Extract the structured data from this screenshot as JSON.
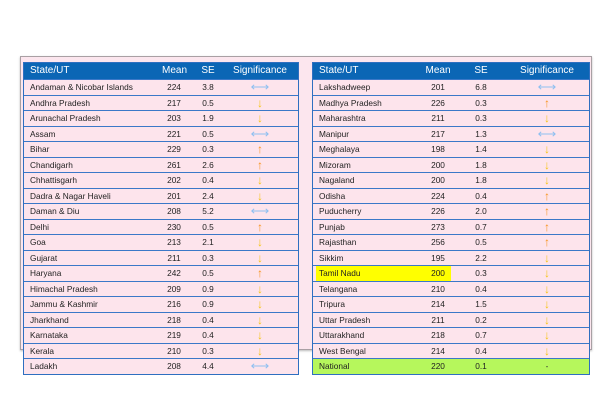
{
  "headers": {
    "state": "State/UT",
    "mean": "Mean",
    "se": "SE",
    "significance": "Significance"
  },
  "colors": {
    "header": "#0b66b5",
    "row": "#fde4ec",
    "border": "#3b78c8",
    "up": "#f7931e",
    "down": "#f5c518",
    "ns": "#8ebff0",
    "national": "#b6f75c",
    "highlight": "#ffff00"
  },
  "left": [
    {
      "state": "Andaman & Nicobar Islands",
      "mean": "224",
      "se": "3.8",
      "sig": "ns"
    },
    {
      "state": "Andhra Pradesh",
      "mean": "217",
      "se": "0.5",
      "sig": "down"
    },
    {
      "state": "Arunachal Pradesh",
      "mean": "203",
      "se": "1.9",
      "sig": "down"
    },
    {
      "state": "Assam",
      "mean": "221",
      "se": "0.5",
      "sig": "ns"
    },
    {
      "state": "Bihar",
      "mean": "229",
      "se": "0.3",
      "sig": "up"
    },
    {
      "state": "Chandigarh",
      "mean": "261",
      "se": "2.6",
      "sig": "up"
    },
    {
      "state": "Chhattisgarh",
      "mean": "202",
      "se": "0.4",
      "sig": "down"
    },
    {
      "state": "Dadra & Nagar Haveli",
      "mean": "201",
      "se": "2.4",
      "sig": "down"
    },
    {
      "state": "Daman & Diu",
      "mean": "208",
      "se": "5.2",
      "sig": "ns"
    },
    {
      "state": "Delhi",
      "mean": "230",
      "se": "0.5",
      "sig": "up"
    },
    {
      "state": "Goa",
      "mean": "213",
      "se": "2.1",
      "sig": "down"
    },
    {
      "state": "Gujarat",
      "mean": "211",
      "se": "0.3",
      "sig": "down"
    },
    {
      "state": "Haryana",
      "mean": "242",
      "se": "0.5",
      "sig": "up"
    },
    {
      "state": "Himachal Pradesh",
      "mean": "209",
      "se": "0.9",
      "sig": "down"
    },
    {
      "state": "Jammu & Kashmir",
      "mean": "216",
      "se": "0.9",
      "sig": "down"
    },
    {
      "state": "Jharkhand",
      "mean": "218",
      "se": "0.4",
      "sig": "down"
    },
    {
      "state": "Karnataka",
      "mean": "219",
      "se": "0.4",
      "sig": "down"
    },
    {
      "state": "Kerala",
      "mean": "210",
      "se": "0.3",
      "sig": "down"
    },
    {
      "state": "Ladakh",
      "mean": "208",
      "se": "4.4",
      "sig": "ns"
    }
  ],
  "right": [
    {
      "state": "Lakshadweep",
      "mean": "201",
      "se": "6.8",
      "sig": "ns"
    },
    {
      "state": "Madhya Pradesh",
      "mean": "226",
      "se": "0.3",
      "sig": "up"
    },
    {
      "state": "Maharashtra",
      "mean": "211",
      "se": "0.3",
      "sig": "down"
    },
    {
      "state": "Manipur",
      "mean": "217",
      "se": "1.3",
      "sig": "ns"
    },
    {
      "state": "Meghalaya",
      "mean": "198",
      "se": "1.4",
      "sig": "down"
    },
    {
      "state": "Mizoram",
      "mean": "200",
      "se": "1.8",
      "sig": "down"
    },
    {
      "state": "Nagaland",
      "mean": "200",
      "se": "1.8",
      "sig": "down"
    },
    {
      "state": "Odisha",
      "mean": "224",
      "se": "0.4",
      "sig": "up"
    },
    {
      "state": "Puducherry",
      "mean": "226",
      "se": "2.0",
      "sig": "up"
    },
    {
      "state": "Punjab",
      "mean": "273",
      "se": "0.7",
      "sig": "up"
    },
    {
      "state": "Rajasthan",
      "mean": "256",
      "se": "0.5",
      "sig": "up"
    },
    {
      "state": "Sikkim",
      "mean": "195",
      "se": "2.2",
      "sig": "down"
    },
    {
      "state": "Tamil Nadu",
      "mean": "200",
      "se": "0.3",
      "sig": "down",
      "highlight": true
    },
    {
      "state": "Telangana",
      "mean": "210",
      "se": "0.4",
      "sig": "down"
    },
    {
      "state": "Tripura",
      "mean": "214",
      "se": "1.5",
      "sig": "down"
    },
    {
      "state": "Uttar Pradesh",
      "mean": "211",
      "se": "0.2",
      "sig": "down"
    },
    {
      "state": "Uttarakhand",
      "mean": "218",
      "se": "0.7",
      "sig": "down"
    },
    {
      "state": "West Bengal",
      "mean": "214",
      "se": "0.4",
      "sig": "down"
    },
    {
      "state": "National",
      "mean": "220",
      "se": "0.1",
      "sig": "dash",
      "sig_text": "-",
      "national": true
    }
  ]
}
